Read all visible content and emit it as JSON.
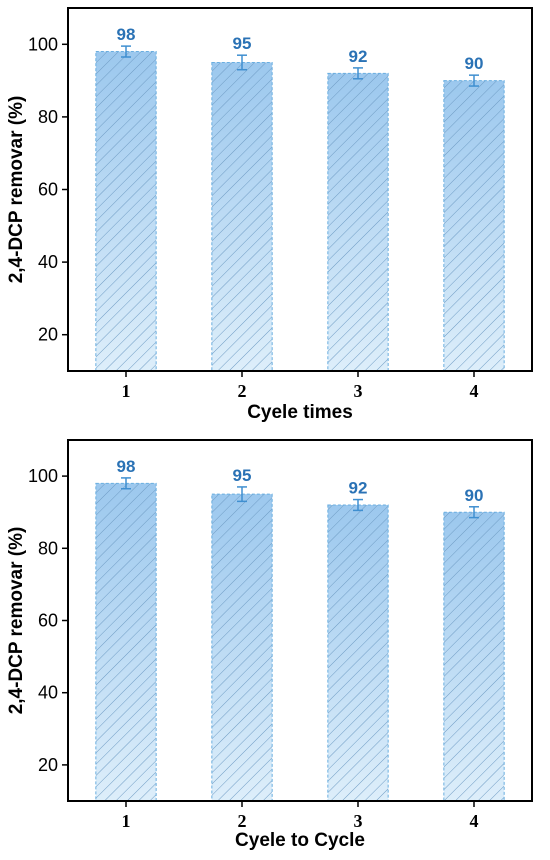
{
  "chart_data": [
    {
      "type": "bar",
      "categories": [
        "1",
        "2",
        "3",
        "4"
      ],
      "values": [
        98,
        95,
        92,
        90
      ],
      "error": [
        1.5,
        2.0,
        1.5,
        1.5
      ],
      "data_labels": [
        "98",
        "95",
        "92",
        "90"
      ],
      "xlabel": "Cyele times",
      "ylabel": "2,4-DCP removar (%)",
      "ylim": [
        10,
        110
      ],
      "yticks": [
        20,
        40,
        60,
        80,
        100
      ],
      "ytick_labels": [
        "20",
        "40",
        "60",
        "80",
        "100"
      ],
      "grid": false,
      "legend": "none"
    },
    {
      "type": "bar",
      "categories": [
        "1",
        "2",
        "3",
        "4"
      ],
      "values": [
        98,
        95,
        92,
        90
      ],
      "error": [
        1.5,
        2.0,
        1.5,
        1.5
      ],
      "data_labels": [
        "98",
        "95",
        "92",
        "90"
      ],
      "xlabel": "Cyele to Cycle",
      "ylabel": "2,4-DCP removar (%)",
      "ylim": [
        10,
        110
      ],
      "yticks": [
        20,
        40,
        60,
        80,
        100
      ],
      "ytick_labels": [
        "20",
        "40",
        "60",
        "80",
        "100"
      ],
      "grid": false,
      "legend": "none"
    }
  ],
  "colors": {
    "bar_top": "#9cc8ee",
    "bar_bottom": "#ddeefa",
    "bar_edge": "#6aaee0",
    "hatch": "#6f9cc4",
    "error_bar": "#3f8fd0",
    "data_label": "#2a72b5"
  }
}
